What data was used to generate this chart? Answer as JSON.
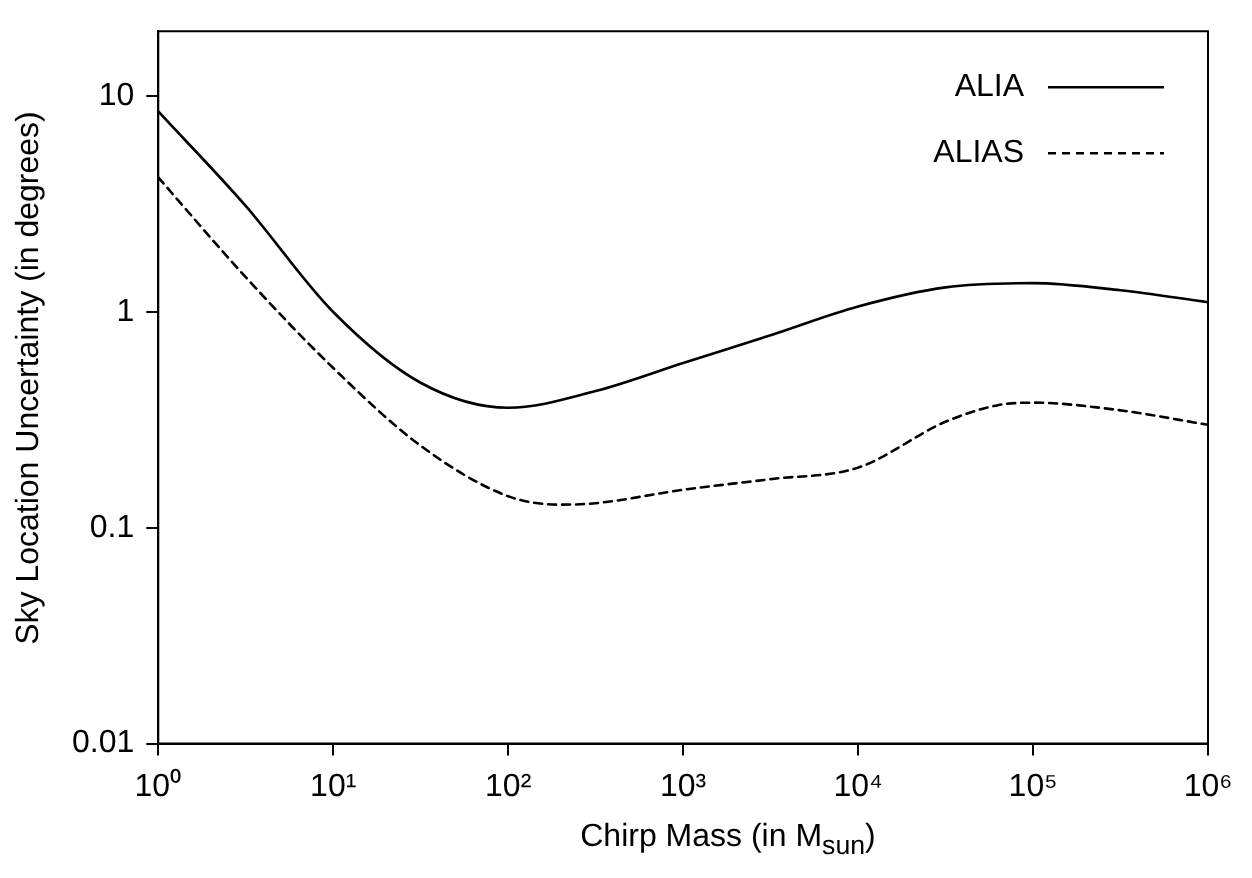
{
  "chart_data": {
    "type": "line",
    "xlabel": "Chirp Mass (in M$_{sun}$)",
    "ylabel": "Sky Location Uncertainty (in degrees)",
    "log": "xy",
    "grid": false,
    "legend": "top right",
    "marker": "none",
    "xlim": [
      1,
      1000000
    ],
    "xticks": [
      {
        "value": 1,
        "label": "10⁰"
      },
      {
        "value": 10,
        "label": "10¹"
      },
      {
        "value": 100,
        "label": "10²"
      },
      {
        "value": 1000,
        "label": "10³"
      },
      {
        "value": 10000,
        "label": "10⁴"
      },
      {
        "value": 100000,
        "label": "10⁵"
      },
      {
        "value": 1000000,
        "label": "10⁶"
      }
    ],
    "ylim": [
      0.01,
      20
    ],
    "yticks": [
      0.01,
      0.1,
      1,
      10
    ],
    "series": [
      {
        "name": "ALIA",
        "color": "#000000",
        "line_style": "solid",
        "x": [
          1,
          3.16,
          10,
          31.6,
          100,
          316,
          1000,
          3160,
          10000,
          31600,
          100000,
          316000,
          1000000
        ],
        "values": [
          8.5,
          3.1,
          1.0,
          0.47,
          0.36,
          0.43,
          0.58,
          0.78,
          1.06,
          1.3,
          1.36,
          1.26,
          1.11
        ]
      },
      {
        "name": "ALIAS",
        "color": "#000000",
        "line_style": "dashed",
        "x": [
          1,
          3.16,
          10,
          31.6,
          100,
          200,
          316,
          1000,
          3160,
          10000,
          31600,
          63000,
          100000,
          316000,
          1000000
        ],
        "values": [
          4.2,
          1.45,
          0.55,
          0.24,
          0.14,
          0.128,
          0.13,
          0.15,
          0.168,
          0.19,
          0.31,
          0.37,
          0.38,
          0.35,
          0.3
        ]
      }
    ]
  }
}
